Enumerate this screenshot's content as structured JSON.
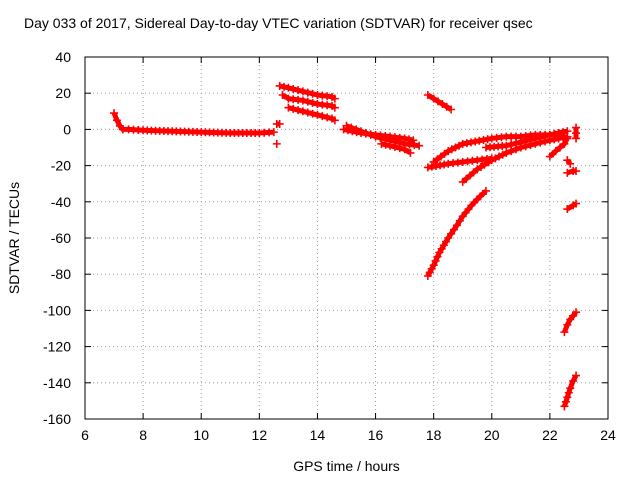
{
  "chart_data": {
    "type": "scatter",
    "title": "Day 033 of 2017, Sidereal Day-to-day VTEC variation (SDTVAR) for receiver qsec",
    "xlabel": "GPS time / hours",
    "ylabel": "SDTVAR / TECUs",
    "xlim": [
      6,
      24
    ],
    "ylim": [
      -160,
      40
    ],
    "xticks": [
      6,
      8,
      10,
      12,
      14,
      16,
      18,
      20,
      22,
      24
    ],
    "yticks": [
      -160,
      -140,
      -120,
      -100,
      -80,
      -60,
      -40,
      -20,
      0,
      20,
      40
    ],
    "grid": true,
    "marker": "plus",
    "colors": {
      "series": "#ff0000",
      "axis": "#000000",
      "grid": "#a0a0a0"
    },
    "series": [
      {
        "x": [
          7.0,
          7.1,
          7.2,
          7.3,
          7.5,
          8.0,
          9.0,
          10.0,
          11.0,
          12.0,
          12.5
        ],
        "y": [
          9,
          5,
          2,
          0,
          0,
          -0.5,
          -1,
          -1.5,
          -2,
          -2,
          -1.5
        ]
      },
      {
        "x": [
          12.6,
          12.7
        ],
        "y": [
          3,
          3
        ]
      },
      {
        "x": [
          12.6
        ],
        "y": [
          -8
        ]
      },
      {
        "x": [
          12.7,
          13.0,
          13.5,
          14.0,
          14.5,
          14.6
        ],
        "y": [
          24,
          23,
          21,
          19,
          18,
          17
        ]
      },
      {
        "x": [
          12.8,
          13.0,
          13.5,
          14.0,
          14.5,
          14.6
        ],
        "y": [
          19,
          17,
          16,
          14,
          13,
          12
        ]
      },
      {
        "x": [
          13.0,
          13.5,
          14.0,
          14.5,
          14.6
        ],
        "y": [
          12,
          10,
          8,
          6,
          5
        ]
      },
      {
        "x": [
          14.9,
          15.5,
          16.0,
          16.5,
          17.0,
          17.3
        ],
        "y": [
          0,
          -2,
          -3,
          -4,
          -5,
          -6
        ]
      },
      {
        "x": [
          15.0,
          15.5,
          16.0,
          16.5,
          17.0,
          17.5
        ],
        "y": [
          2,
          -1,
          -4,
          -6,
          -8,
          -9
        ]
      },
      {
        "x": [
          16.2,
          16.5,
          17.0,
          17.2
        ],
        "y": [
          -8,
          -9,
          -11,
          -13
        ]
      },
      {
        "x": [
          17.8,
          18.0,
          18.3,
          18.6
        ],
        "y": [
          19,
          17,
          14,
          11
        ]
      },
      {
        "x": [
          17.8,
          18.5,
          19.0,
          19.5,
          20.0
        ],
        "y": [
          -21,
          -19,
          -18,
          -17,
          -16
        ]
      },
      {
        "x": [
          18.0,
          18.5,
          19.0,
          20.0,
          20.5,
          21.0,
          21.5,
          22.0,
          22.5
        ],
        "y": [
          -18,
          -12,
          -8,
          -5,
          -4,
          -4,
          -3,
          -3,
          -2
        ]
      },
      {
        "x": [
          19.0,
          19.5,
          20.0,
          20.5,
          21.0,
          21.5,
          22.0,
          22.6
        ],
        "y": [
          -29,
          -22,
          -17,
          -13,
          -10,
          -8,
          -6,
          -4
        ]
      },
      {
        "x": [
          19.8,
          20.5,
          21.0,
          21.5,
          22.0,
          22.6
        ],
        "y": [
          -10,
          -9,
          -7,
          -5,
          -3,
          -1
        ]
      },
      {
        "x": [
          17.8,
          18.0,
          18.2,
          18.5,
          18.8,
          19.0,
          19.3,
          19.6,
          19.8
        ],
        "y": [
          -81,
          -75,
          -68,
          -60,
          -53,
          -48,
          -42,
          -37,
          -34
        ]
      },
      {
        "x": [
          22.0,
          22.2,
          22.5,
          22.6
        ],
        "y": [
          -15,
          -12,
          -8,
          -5
        ]
      },
      {
        "x": [
          22.6,
          22.7
        ],
        "y": [
          -17,
          -19
        ]
      },
      {
        "x": [
          22.6,
          22.8,
          22.9
        ],
        "y": [
          -24,
          -23,
          -23
        ]
      },
      {
        "x": [
          22.6,
          22.8,
          22.9
        ],
        "y": [
          -44,
          -42,
          -41
        ]
      },
      {
        "x": [
          22.9,
          22.9
        ],
        "y": [
          -5,
          1
        ]
      },
      {
        "x": [
          22.5,
          22.6,
          22.7,
          22.8,
          22.9
        ],
        "y": [
          -112,
          -108,
          -105,
          -103,
          -101
        ]
      },
      {
        "x": [
          22.5,
          22.6,
          22.7,
          22.8,
          22.9
        ],
        "y": [
          -153,
          -148,
          -143,
          -139,
          -136
        ]
      }
    ]
  }
}
